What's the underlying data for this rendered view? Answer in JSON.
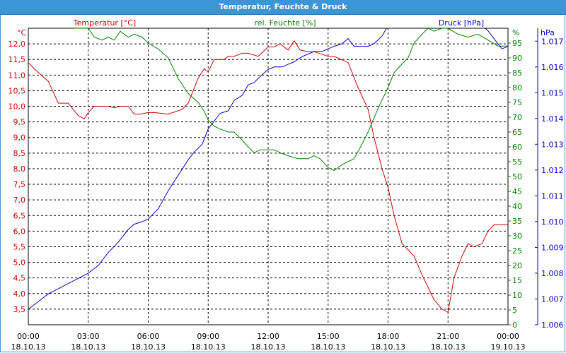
{
  "window": {
    "title": "Temperatur, Feuchte & Druck"
  },
  "colors": {
    "temperature": "#cc0000",
    "humidity": "#008000",
    "pressure": "#0000cc",
    "grid": "#000000",
    "titlebar": "#3c96d6"
  },
  "chart_data": {
    "type": "line",
    "title": "Temperatur, Feuchte & Druck",
    "x_ticks": [
      {
        "time": "00:00",
        "date": "18.10.13"
      },
      {
        "time": "03:00",
        "date": "18.10.13"
      },
      {
        "time": "06:00",
        "date": "18.10.13"
      },
      {
        "time": "09:00",
        "date": "18.10.13"
      },
      {
        "time": "12:00",
        "date": "18.10.13"
      },
      {
        "time": "15:00",
        "date": "18.10.13"
      },
      {
        "time": "18:00",
        "date": "18.10.13"
      },
      {
        "time": "21:00",
        "date": "18.10.13"
      },
      {
        "time": "00:00",
        "date": "19.10.13"
      }
    ],
    "xlim": [
      0,
      24
    ],
    "grid": true,
    "axes": {
      "temperature": {
        "label": "Temperatur [°C]",
        "unit": "°C",
        "ylim": [
          3.0,
          12.5
        ],
        "ticks": [
          "3,5",
          "4,0",
          "4,5",
          "5,0",
          "5,5",
          "6,0",
          "6,5",
          "7,0",
          "7,5",
          "8,0",
          "8,5",
          "9,0",
          "9,5",
          "10,0",
          "10,5",
          "11,0",
          "11,5",
          "12,0"
        ]
      },
      "humidity": {
        "label": "rel. Feuchte [%]",
        "unit": "%",
        "ylim": [
          0,
          100
        ],
        "ticks": [
          "0",
          "5",
          "10",
          "15",
          "20",
          "25",
          "30",
          "35",
          "40",
          "45",
          "50",
          "55",
          "60",
          "65",
          "70",
          "75",
          "80",
          "85",
          "90",
          "95"
        ]
      },
      "pressure": {
        "label": "Druck [hPa]",
        "unit": "hPa",
        "ylim": [
          1.006,
          1.0175
        ],
        "ticks": [
          "1.006",
          "1.007",
          "1.008",
          "1.009",
          "1.010",
          "1.011",
          "1.012",
          "1.013",
          "1.014",
          "1.015",
          "1.016",
          "1.017"
        ]
      }
    },
    "series": [
      {
        "name": "Temperatur [°C]",
        "axis": "temperature",
        "x": [
          0,
          0.3,
          1,
          1.5,
          2,
          2.5,
          2.8,
          3,
          3.3,
          3.7,
          4,
          4.3,
          4.6,
          5,
          5.3,
          5.6,
          6,
          6.3,
          7,
          7.7,
          8,
          8.5,
          8.8,
          9,
          9.3,
          9.8,
          10,
          10.3,
          10.7,
          11,
          11.5,
          12,
          12.3,
          12.6,
          13,
          13.3,
          13.6,
          14,
          14.3,
          15,
          15.3,
          16,
          16.5,
          17,
          17.3,
          17.7,
          18,
          18.3,
          18.7,
          19,
          19.3,
          19.7,
          20,
          20.3,
          20.7,
          21,
          21.3,
          21.7,
          22,
          22.3,
          22.7,
          23,
          23.3,
          23.7,
          24
        ],
        "y": [
          11.4,
          11.2,
          10.8,
          10.1,
          10.1,
          9.7,
          9.6,
          9.8,
          10.0,
          10.0,
          10.0,
          9.95,
          10.0,
          10.0,
          9.75,
          9.75,
          9.8,
          9.8,
          9.75,
          9.9,
          10.1,
          10.9,
          11.2,
          11.1,
          11.5,
          11.5,
          11.6,
          11.6,
          11.7,
          11.7,
          11.6,
          11.9,
          11.9,
          12.0,
          11.8,
          12.1,
          11.8,
          11.75,
          11.75,
          11.6,
          11.6,
          11.4,
          10.6,
          9.9,
          9.0,
          8.0,
          7.4,
          6.5,
          5.6,
          5.4,
          5.2,
          4.6,
          4.2,
          3.8,
          3.5,
          3.4,
          4.5,
          5.2,
          5.6,
          5.5,
          5.6,
          6.0,
          6.2,
          6.2,
          6.2
        ]
      },
      {
        "name": "rel. Feuchte [%]",
        "axis": "humidity",
        "x": [
          2.3,
          2.7,
          3,
          3.3,
          3.7,
          4,
          4.3,
          4.6,
          5,
          5.3,
          5.7,
          6,
          6.5,
          7,
          7.5,
          8,
          8.5,
          8.8,
          9,
          9.3,
          9.6,
          10,
          10.3,
          10.6,
          11,
          11.3,
          11.6,
          12,
          12.3,
          12.6,
          13,
          13.5,
          14,
          14.3,
          14.6,
          15,
          15.3,
          15.7,
          16,
          16.3,
          16.7,
          17,
          17.5,
          18,
          18.3,
          18.7,
          19,
          19.3,
          19.7,
          20,
          20.3,
          20.7,
          21,
          21.5,
          22,
          22.5,
          23,
          23.5,
          24
        ],
        "y": [
          100,
          100,
          100,
          97,
          96,
          97,
          96,
          99,
          97,
          98,
          97,
          95,
          93,
          90,
          83,
          78,
          75,
          72,
          69,
          67,
          66,
          65,
          65,
          63,
          60,
          58,
          59,
          59,
          59,
          58,
          57,
          56,
          56,
          57,
          56,
          53,
          52,
          54,
          55,
          56,
          61,
          65,
          73,
          80,
          85,
          88,
          90,
          95,
          98,
          100,
          99,
          100,
          100,
          98,
          97,
          98,
          96,
          94,
          94
        ]
      },
      {
        "name": "Druck [hPa]",
        "axis": "pressure",
        "x": [
          0,
          0.5,
          1,
          1.5,
          2,
          2.5,
          3,
          3.5,
          4,
          4.5,
          5,
          5.3,
          5.7,
          6,
          6.5,
          7,
          7.5,
          8,
          8.3,
          8.7,
          9,
          9.3,
          9.6,
          10,
          10.3,
          10.7,
          11,
          11.3,
          11.7,
          12,
          12.3,
          12.7,
          13,
          13.3,
          13.7,
          14,
          14.3,
          14.7,
          15,
          15.3,
          15.7,
          16,
          16.3,
          16.7,
          17,
          17.3,
          17.7,
          18,
          18.3,
          18.7,
          19,
          19.3,
          19.7,
          20,
          20.3,
          20.7,
          21,
          21.3,
          21.7,
          22,
          22.3,
          22.7,
          23,
          23.3,
          23.7,
          24
        ],
        "y": [
          1.0066,
          1.0069,
          1.0072,
          1.0074,
          1.0076,
          1.0078,
          1.008,
          1.0083,
          1.0088,
          1.0092,
          1.0097,
          1.0099,
          1.01,
          1.0101,
          1.0105,
          1.0112,
          1.0118,
          1.0124,
          1.0127,
          1.013,
          1.0136,
          1.0139,
          1.0142,
          1.0143,
          1.0147,
          1.0149,
          1.0153,
          1.0154,
          1.0157,
          1.0159,
          1.016,
          1.016,
          1.0161,
          1.0162,
          1.0164,
          1.0165,
          1.0166,
          1.0166,
          1.0167,
          1.0168,
          1.0169,
          1.0171,
          1.0168,
          1.0168,
          1.0168,
          1.0169,
          1.0172,
          1.0176,
          1.0178,
          1.0179,
          1.018,
          1.0178,
          1.0179,
          1.0178,
          1.018,
          1.018,
          1.0179,
          1.0181,
          1.0179,
          1.018,
          1.0178,
          1.0176,
          1.0174,
          1.0171,
          1.0167,
          1.0168
        ]
      }
    ]
  }
}
